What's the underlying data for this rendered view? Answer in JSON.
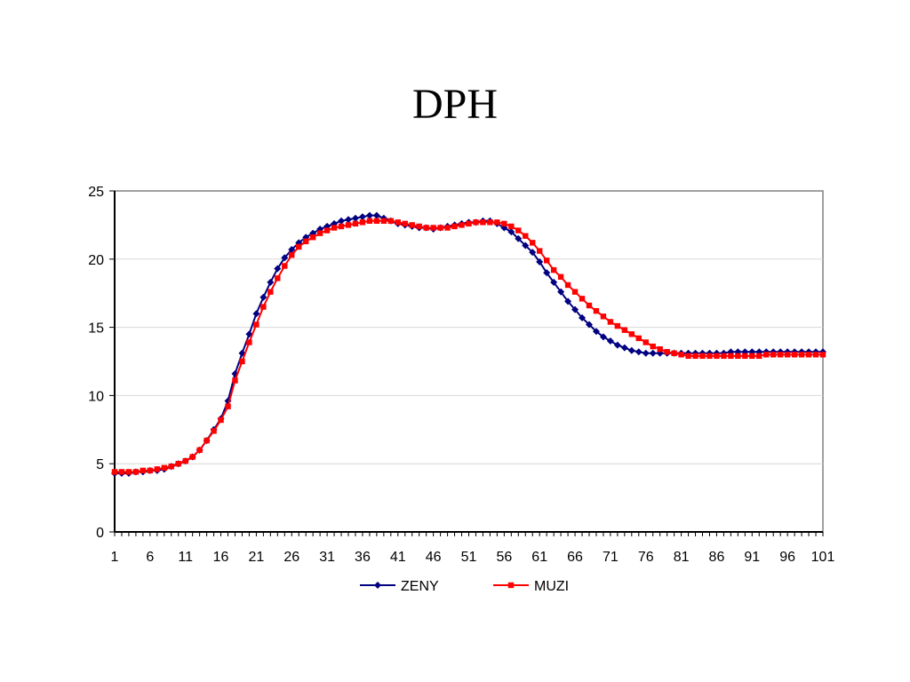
{
  "chart_data": {
    "type": "line",
    "title": "DPH",
    "xlabel": "",
    "ylabel": "",
    "x_start": 1,
    "x_end": 101,
    "x_tick_labels": [
      "1",
      "6",
      "11",
      "16",
      "21",
      "26",
      "31",
      "36",
      "41",
      "46",
      "51",
      "56",
      "61",
      "66",
      "71",
      "76",
      "81",
      "86",
      "91",
      "96",
      "101"
    ],
    "ylim": [
      0,
      25
    ],
    "y_ticks": [
      0,
      5,
      10,
      15,
      20,
      25
    ],
    "grid": "horizontal",
    "legend_position": "bottom",
    "series": [
      {
        "name": "ZENY",
        "color": "#000080",
        "marker": "diamond",
        "values": [
          4.3,
          4.3,
          4.3,
          4.4,
          4.4,
          4.5,
          4.5,
          4.6,
          4.8,
          5.0,
          5.2,
          5.5,
          6.0,
          6.7,
          7.5,
          8.3,
          9.6,
          11.6,
          13.1,
          14.5,
          16.0,
          17.2,
          18.3,
          19.3,
          20.1,
          20.7,
          21.2,
          21.6,
          21.9,
          22.2,
          22.4,
          22.6,
          22.8,
          22.9,
          23.0,
          23.1,
          23.2,
          23.2,
          23.0,
          22.8,
          22.6,
          22.5,
          22.4,
          22.3,
          22.3,
          22.2,
          22.3,
          22.4,
          22.5,
          22.6,
          22.7,
          22.7,
          22.8,
          22.8,
          22.6,
          22.3,
          22.0,
          21.5,
          21.0,
          20.5,
          19.8,
          19.0,
          18.3,
          17.6,
          16.9,
          16.3,
          15.7,
          15.2,
          14.7,
          14.3,
          14.0,
          13.7,
          13.5,
          13.3,
          13.2,
          13.1,
          13.1,
          13.1,
          13.1,
          13.1,
          13.1,
          13.1,
          13.1,
          13.1,
          13.1,
          13.1,
          13.1,
          13.2,
          13.2,
          13.2,
          13.2,
          13.2,
          13.2,
          13.2,
          13.2,
          13.2,
          13.2,
          13.2,
          13.2,
          13.2,
          13.2
        ]
      },
      {
        "name": "MUZI",
        "color": "#ff0000",
        "marker": "square",
        "values": [
          4.4,
          4.4,
          4.4,
          4.4,
          4.5,
          4.5,
          4.6,
          4.7,
          4.8,
          5.0,
          5.2,
          5.5,
          6.0,
          6.7,
          7.4,
          8.2,
          9.2,
          11.1,
          12.5,
          13.9,
          15.2,
          16.5,
          17.6,
          18.6,
          19.5,
          20.3,
          20.9,
          21.3,
          21.6,
          21.9,
          22.1,
          22.3,
          22.4,
          22.5,
          22.6,
          22.7,
          22.8,
          22.8,
          22.8,
          22.8,
          22.7,
          22.6,
          22.5,
          22.4,
          22.3,
          22.3,
          22.3,
          22.3,
          22.4,
          22.5,
          22.6,
          22.7,
          22.7,
          22.7,
          22.7,
          22.6,
          22.4,
          22.1,
          21.7,
          21.2,
          20.6,
          19.9,
          19.2,
          18.7,
          18.1,
          17.6,
          17.1,
          16.6,
          16.2,
          15.8,
          15.4,
          15.1,
          14.8,
          14.5,
          14.2,
          13.9,
          13.6,
          13.4,
          13.2,
          13.1,
          13.0,
          12.9,
          12.9,
          12.9,
          12.9,
          12.9,
          12.9,
          12.9,
          12.9,
          12.9,
          12.9,
          12.9,
          13.0,
          13.0,
          13.0,
          13.0,
          13.0,
          13.0,
          13.0,
          13.0,
          13.0
        ]
      }
    ]
  }
}
